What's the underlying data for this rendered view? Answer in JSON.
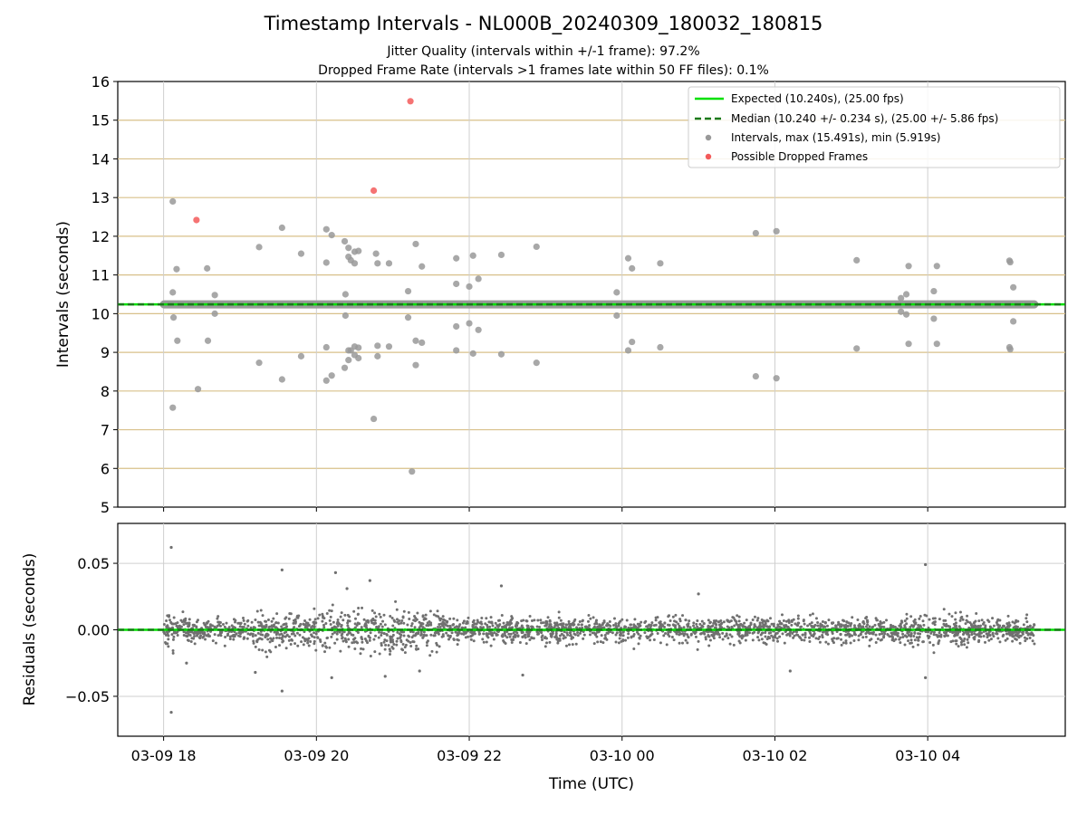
{
  "chart_data": [
    {
      "type": "scatter",
      "title": "Timestamp Intervals - NL000B_20240309_180032_180815",
      "subtitle_lines": [
        "Jitter Quality (intervals within +/-1 frame): 97.2%",
        "Dropped Frame Rate (intervals >1 frames late within 50 FF files): 0.1%"
      ],
      "xlabel": "",
      "ylabel": "Intervals (seconds)",
      "xlim_hours": [
        17.4,
        29.8
      ],
      "ylim": [
        5,
        16
      ],
      "yticks": [
        5,
        6,
        7,
        8,
        9,
        10,
        11,
        12,
        13,
        14,
        15,
        16
      ],
      "grid": true,
      "horizontal_gridline_color": "#d8c08a",
      "legend_position": "top-right",
      "legend": [
        "Expected (10.240s), (25.00 fps)",
        "Median (10.240 +/- 0.234 s), (25.00 +/- 5.86 fps)",
        "Intervals, max (15.491s), min (5.919s)",
        "Possible Dropped Frames"
      ],
      "expected": 10.24,
      "median": 10.24,
      "dense_band": {
        "x_start_hour": 18.0,
        "x_end_hour": 29.4,
        "value": 10.24
      },
      "series": [
        {
          "name": "Intervals, max (15.491s), min (5.919s)",
          "color": "#999999",
          "points": [
            [
              18.12,
              12.9
            ],
            [
              18.12,
              10.55
            ],
            [
              18.13,
              9.9
            ],
            [
              18.12,
              7.57
            ],
            [
              18.17,
              11.15
            ],
            [
              18.18,
              9.3
            ],
            [
              18.45,
              8.05
            ],
            [
              18.57,
              11.17
            ],
            [
              18.58,
              9.3
            ],
            [
              18.67,
              10.48
            ],
            [
              18.67,
              10.0
            ],
            [
              19.25,
              11.72
            ],
            [
              19.25,
              8.73
            ],
            [
              19.55,
              12.22
            ],
            [
              19.55,
              8.3
            ],
            [
              19.8,
              11.55
            ],
            [
              19.8,
              8.9
            ],
            [
              20.13,
              12.18
            ],
            [
              20.13,
              11.32
            ],
            [
              20.13,
              9.13
            ],
            [
              20.13,
              8.27
            ],
            [
              20.2,
              12.03
            ],
            [
              20.2,
              8.4
            ],
            [
              20.37,
              11.87
            ],
            [
              20.38,
              10.5
            ],
            [
              20.38,
              9.95
            ],
            [
              20.37,
              8.6
            ],
            [
              20.42,
              11.7
            ],
            [
              20.42,
              11.47
            ],
            [
              20.42,
              9.05
            ],
            [
              20.42,
              8.8
            ],
            [
              20.45,
              11.38
            ],
            [
              20.45,
              9.05
            ],
            [
              20.5,
              11.6
            ],
            [
              20.5,
              11.3
            ],
            [
              20.5,
              9.15
            ],
            [
              20.5,
              8.93
            ],
            [
              20.55,
              11.62
            ],
            [
              20.55,
              9.12
            ],
            [
              20.55,
              8.85
            ],
            [
              20.75,
              7.28
            ],
            [
              20.78,
              11.55
            ],
            [
              20.8,
              11.3
            ],
            [
              20.8,
              9.17
            ],
            [
              20.8,
              8.9
            ],
            [
              20.95,
              11.3
            ],
            [
              20.95,
              9.15
            ],
            [
              21.2,
              10.58
            ],
            [
              21.2,
              9.9
            ],
            [
              21.25,
              5.92
            ],
            [
              21.3,
              11.8
            ],
            [
              21.3,
              8.67
            ],
            [
              21.3,
              9.3
            ],
            [
              21.38,
              11.22
            ],
            [
              21.38,
              9.25
            ],
            [
              21.83,
              11.43
            ],
            [
              21.83,
              10.77
            ],
            [
              21.83,
              9.67
            ],
            [
              21.83,
              9.05
            ],
            [
              22.0,
              10.7
            ],
            [
              22.0,
              9.75
            ],
            [
              22.05,
              11.5
            ],
            [
              22.05,
              8.97
            ],
            [
              22.12,
              10.9
            ],
            [
              22.12,
              9.58
            ],
            [
              22.42,
              11.52
            ],
            [
              22.42,
              8.95
            ],
            [
              22.88,
              11.73
            ],
            [
              22.88,
              8.73
            ],
            [
              23.93,
              10.55
            ],
            [
              23.93,
              9.95
            ],
            [
              24.08,
              11.43
            ],
            [
              24.08,
              9.05
            ],
            [
              24.13,
              11.17
            ],
            [
              24.13,
              9.27
            ],
            [
              24.5,
              11.3
            ],
            [
              24.5,
              9.13
            ],
            [
              25.75,
              12.08
            ],
            [
              25.75,
              8.38
            ],
            [
              26.02,
              12.13
            ],
            [
              26.02,
              8.33
            ],
            [
              27.07,
              11.38
            ],
            [
              27.07,
              9.1
            ],
            [
              27.65,
              10.4
            ],
            [
              27.65,
              10.05
            ],
            [
              27.72,
              10.5
            ],
            [
              27.72,
              9.98
            ],
            [
              27.75,
              11.23
            ],
            [
              27.75,
              9.22
            ],
            [
              28.08,
              10.58
            ],
            [
              28.08,
              9.87
            ],
            [
              28.12,
              11.23
            ],
            [
              28.12,
              9.22
            ],
            [
              29.07,
              11.37
            ],
            [
              29.07,
              9.13
            ],
            [
              29.08,
              11.33
            ],
            [
              29.08,
              9.08
            ],
            [
              29.12,
              10.68
            ],
            [
              29.12,
              9.8
            ]
          ]
        },
        {
          "name": "Possible Dropped Frames",
          "color": "#f35a5a",
          "points": [
            [
              18.43,
              12.42
            ],
            [
              20.75,
              13.18
            ],
            [
              21.23,
              15.49
            ]
          ]
        }
      ]
    },
    {
      "type": "scatter",
      "xlabel": "Time (UTC)",
      "ylabel": "Residuals (seconds)",
      "xlim_hours": [
        17.4,
        29.8
      ],
      "ylim": [
        -0.08,
        0.08
      ],
      "yticks": [
        -0.05,
        0.0,
        0.05
      ],
      "ytick_labels": [
        "−0.05",
        "0.00",
        "0.05"
      ],
      "xticks": [
        {
          "hour": 18,
          "label": "03-09 18"
        },
        {
          "hour": 20,
          "label": "03-09 20"
        },
        {
          "hour": 22,
          "label": "03-09 22"
        },
        {
          "hour": 24,
          "label": "03-10 00"
        },
        {
          "hour": 26,
          "label": "03-10 02"
        },
        {
          "hour": 28,
          "label": "03-10 04"
        }
      ],
      "grid": true,
      "expected": 0.0,
      "median": 0.0,
      "residual_spread": 0.012,
      "series": [
        {
          "name": "Residuals",
          "color": "#707070",
          "outliers": [
            [
              18.1,
              0.062
            ],
            [
              18.1,
              -0.062
            ],
            [
              18.3,
              -0.025
            ],
            [
              19.55,
              0.045
            ],
            [
              19.55,
              -0.046
            ],
            [
              20.25,
              0.043
            ],
            [
              20.2,
              -0.036
            ],
            [
              20.7,
              0.037
            ],
            [
              20.9,
              -0.035
            ],
            [
              21.35,
              -0.031
            ],
            [
              22.42,
              0.033
            ],
            [
              22.7,
              -0.034
            ],
            [
              27.97,
              0.049
            ],
            [
              27.97,
              -0.036
            ],
            [
              26.2,
              -0.031
            ],
            [
              25.0,
              0.027
            ],
            [
              19.2,
              -0.032
            ],
            [
              20.4,
              0.031
            ]
          ]
        }
      ]
    }
  ]
}
